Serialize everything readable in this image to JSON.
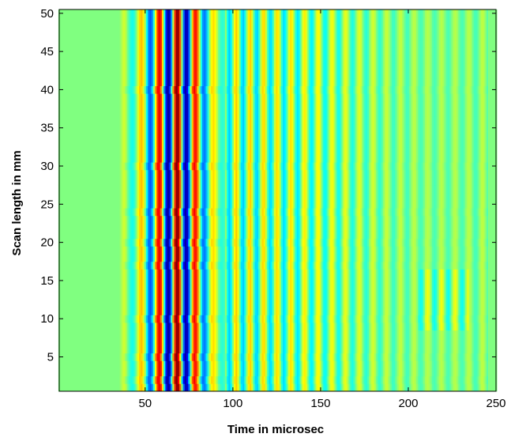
{
  "chart_data": {
    "type": "heatmap",
    "title": "",
    "xlabel": "Time in microsec",
    "ylabel": "Scan length in mm",
    "xlim": [
      1,
      250
    ],
    "ylim": [
      0.5,
      50.5
    ],
    "xticks": [
      50,
      100,
      150,
      200,
      250
    ],
    "yticks": [
      5,
      10,
      15,
      20,
      25,
      30,
      35,
      40,
      45,
      50
    ],
    "colormap": "jet",
    "color_range": [
      -1,
      1
    ],
    "grid": false,
    "legend": "none",
    "description": "Waveform amplitude vs time across scan positions: flat (0) until ~35 µs, strong oscillating packet ~40–95 µs, weaker oscillations to ~245 µs.",
    "signal_model": {
      "onset_us": 35,
      "main_packet": {
        "start_us": 40,
        "end_us": 95,
        "peak_amplitude": 1.0,
        "period_us": 10.4
      },
      "tail": {
        "start_us": 95,
        "end_us": 245,
        "amplitude": 0.35,
        "period_us": 7.8
      },
      "row_perturbations_mm": [
        2,
        5,
        10,
        17,
        20,
        24,
        30,
        40
      ]
    }
  },
  "colors": {
    "background": "#ffffff",
    "zero_level": "#80ff80",
    "axis": "#000000"
  }
}
